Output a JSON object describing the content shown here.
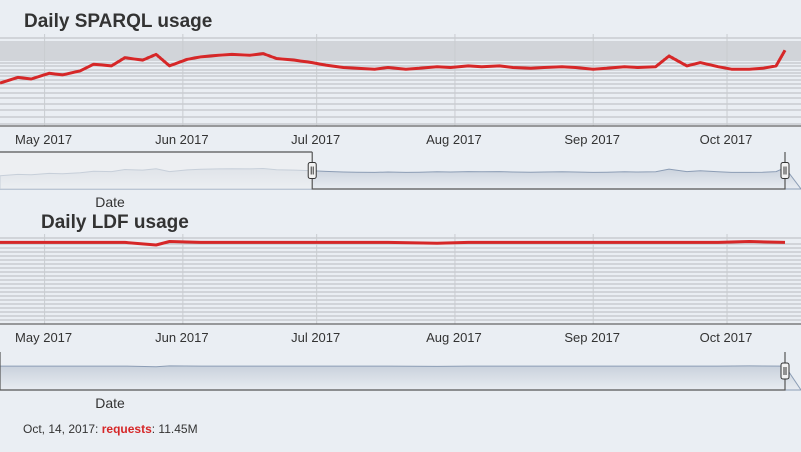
{
  "chart_data": [
    {
      "type": "line",
      "title": "Daily SPARQL usage",
      "xlabel": "Date",
      "ylabel": "",
      "x_ticks": [
        "May 2017",
        "Jun 2017",
        "Jul 2017",
        "Aug 2017",
        "Sep 2017",
        "Oct 2017"
      ],
      "x_range": [
        "2017-04-21",
        "2017-10-14"
      ],
      "y_range": [
        0,
        100
      ],
      "log_scale": true,
      "grid": true,
      "line_color": "#d62728",
      "navigator_selection": [
        "2017-06-30",
        "2017-10-14"
      ],
      "series": [
        {
          "points": [
            [
              "2017-04-21",
              45
            ],
            [
              "2017-04-25",
              52
            ],
            [
              "2017-04-28",
              50
            ],
            [
              "2017-05-02",
              57
            ],
            [
              "2017-05-05",
              55
            ],
            [
              "2017-05-09",
              60
            ],
            [
              "2017-05-12",
              68
            ],
            [
              "2017-05-16",
              66
            ],
            [
              "2017-05-19",
              76
            ],
            [
              "2017-05-23",
              73
            ],
            [
              "2017-05-26",
              80
            ],
            [
              "2017-05-29",
              66
            ],
            [
              "2017-06-02",
              74
            ],
            [
              "2017-06-05",
              77
            ],
            [
              "2017-06-09",
              79
            ],
            [
              "2017-06-12",
              80
            ],
            [
              "2017-06-16",
              79
            ],
            [
              "2017-06-19",
              81
            ],
            [
              "2017-06-22",
              75
            ],
            [
              "2017-06-26",
              73
            ],
            [
              "2017-06-30",
              70
            ],
            [
              "2017-07-03",
              67
            ],
            [
              "2017-07-07",
              64
            ],
            [
              "2017-07-10",
              63
            ],
            [
              "2017-07-14",
              62
            ],
            [
              "2017-07-17",
              64
            ],
            [
              "2017-07-21",
              62
            ],
            [
              "2017-07-24",
              63
            ],
            [
              "2017-07-28",
              65
            ],
            [
              "2017-07-31",
              64
            ],
            [
              "2017-08-04",
              66
            ],
            [
              "2017-08-07",
              65
            ],
            [
              "2017-08-11",
              66
            ],
            [
              "2017-08-14",
              64
            ],
            [
              "2017-08-18",
              63
            ],
            [
              "2017-08-21",
              64
            ],
            [
              "2017-08-25",
              65
            ],
            [
              "2017-08-28",
              64
            ],
            [
              "2017-09-01",
              62
            ],
            [
              "2017-09-04",
              63
            ],
            [
              "2017-09-08",
              65
            ],
            [
              "2017-09-11",
              64
            ],
            [
              "2017-09-15",
              65
            ],
            [
              "2017-09-18",
              78
            ],
            [
              "2017-09-22",
              66
            ],
            [
              "2017-09-25",
              70
            ],
            [
              "2017-09-29",
              65
            ],
            [
              "2017-10-02",
              62
            ],
            [
              "2017-10-06",
              62
            ],
            [
              "2017-10-09",
              63
            ],
            [
              "2017-10-12",
              66
            ],
            [
              "2017-10-14",
              85
            ]
          ]
        }
      ]
    },
    {
      "type": "line",
      "title": "Daily LDF usage",
      "xlabel": "Date",
      "ylabel": "",
      "x_ticks": [
        "May 2017",
        "Jun 2017",
        "Jul 2017",
        "Aug 2017",
        "Sep 2017",
        "Oct 2017"
      ],
      "x_range": [
        "2017-04-21",
        "2017-10-14"
      ],
      "y_range": [
        0,
        100
      ],
      "log_scale": true,
      "grid": true,
      "line_color": "#d62728",
      "navigator_selection": [
        "2017-04-21",
        "2017-10-14"
      ],
      "series": [
        {
          "points": [
            [
              "2017-04-21",
              95
            ],
            [
              "2017-05-05",
              95
            ],
            [
              "2017-05-19",
              95
            ],
            [
              "2017-05-26",
              92
            ],
            [
              "2017-05-29",
              96
            ],
            [
              "2017-06-05",
              95
            ],
            [
              "2017-06-19",
              95
            ],
            [
              "2017-07-03",
              95
            ],
            [
              "2017-07-17",
              95
            ],
            [
              "2017-07-28",
              94
            ],
            [
              "2017-08-04",
              95
            ],
            [
              "2017-08-18",
              95
            ],
            [
              "2017-09-01",
              95
            ],
            [
              "2017-09-15",
              95
            ],
            [
              "2017-09-29",
              95
            ],
            [
              "2017-10-06",
              96
            ],
            [
              "2017-10-14",
              95
            ]
          ]
        }
      ]
    }
  ],
  "tooltip": {
    "date": "Oct, 14, 2017:",
    "series_name": "requests",
    "value": ": 11.45M"
  }
}
